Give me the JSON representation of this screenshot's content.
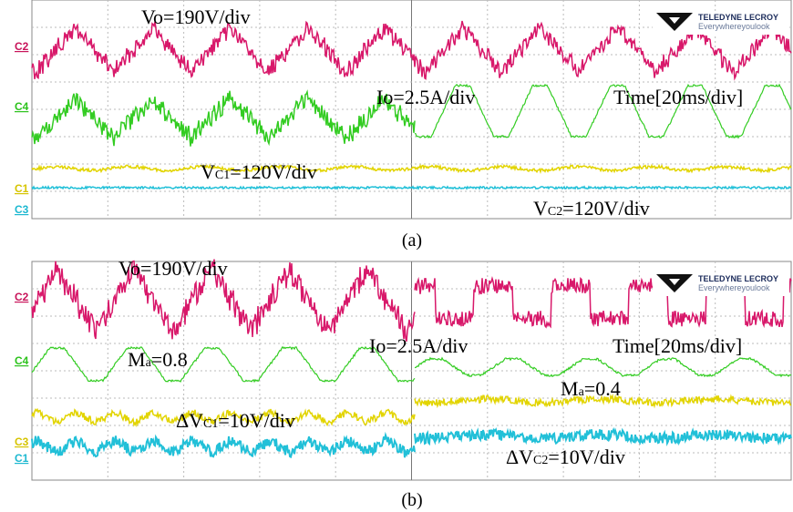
{
  "panels": [
    {
      "caption": "(a)",
      "channels": [
        "C2",
        "C4",
        "C1",
        "C3"
      ],
      "logo": {
        "brand": "TELEDYNE LECROY",
        "slogan": "Everywhereyoulook"
      },
      "labels": {
        "vo": "Vo=190V/div",
        "io": "Io=2.5A/div",
        "time": "Time[20ms/div]",
        "vc1": {
          "lead": "V",
          "sub": "C1",
          "tail": "=120V/div"
        },
        "vc2": {
          "lead": "V",
          "sub": "C2",
          "tail": "=120V/div"
        }
      }
    },
    {
      "caption": "(b)",
      "channels": [
        "C2",
        "C4",
        "C3",
        "C1"
      ],
      "logo": {
        "brand": "TELEDYNE LECROY",
        "slogan": "Everywhereyoulook"
      },
      "labels": {
        "vo": "Vo=190V/div",
        "io": "Io=2.5A/div",
        "time": "Time[20ms/div]",
        "ma1": {
          "lead": "M",
          "sub": "a",
          "tail": "=0.8"
        },
        "ma2": {
          "lead": "M",
          "sub": "a",
          "tail": "=0.4"
        },
        "vc1": {
          "lead": "ΔV",
          "sub": "C1",
          "tail": "=10V/div"
        },
        "vc2": {
          "lead": "ΔV",
          "sub": "C2",
          "tail": "=10V/div"
        }
      }
    }
  ]
}
